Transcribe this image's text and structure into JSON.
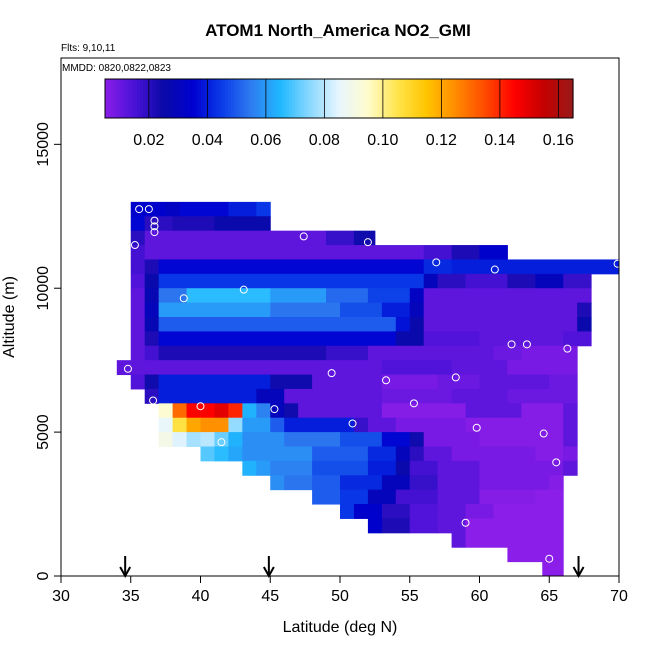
{
  "chart_data": {
    "type": "heatmap",
    "title": "ATOM1 North_America NO2_GMI",
    "subtitle_line1": "Flts: 9,10,11",
    "subtitle_line2": "MMDD: 0820,0822,0823",
    "xlabel": "Latitude (deg N)",
    "ylabel": "Altitude (m)",
    "xlim": [
      30,
      70
    ],
    "ylim": [
      0,
      18000
    ],
    "xticks": [
      30,
      35,
      40,
      45,
      50,
      55,
      60,
      65,
      70
    ],
    "xtick_labels": [
      "30",
      "35",
      "40",
      "45",
      "50",
      "55",
      "60",
      "65",
      "70"
    ],
    "yticks": [
      0,
      5000,
      10000,
      15000
    ],
    "ytick_labels": [
      "0",
      "5000",
      "10000",
      "15000"
    ],
    "grid": false,
    "colorbar": {
      "placement": "top",
      "min": 0.005,
      "max": 0.165,
      "ticks": [
        0.02,
        0.04,
        0.06,
        0.08,
        0.1,
        0.12,
        0.14,
        0.16
      ],
      "tick_labels": [
        "0.02",
        "0.04",
        "0.06",
        "0.08",
        "0.10",
        "0.12",
        "0.14",
        "0.16"
      ],
      "colors": [
        "#8b1ee8",
        "#4a12d8",
        "#0a0aa8",
        "#0000d0",
        "#0a3ce8",
        "#2f7cf0",
        "#20b8ff",
        "#8ad8ff",
        "#e8f6ff",
        "#fffccc",
        "#ffe44a",
        "#ffc400",
        "#ff8a00",
        "#ff4a00",
        "#ff0000",
        "#c40000",
        "#9a1a1a"
      ]
    },
    "cell_size": {
      "dlat": 1.0,
      "dalt": 500
    },
    "rows": [
      {
        "alt": 12750,
        "ranges": [
          [
            35.0,
            37.5,
            0.034
          ],
          [
            37.5,
            38.5,
            0.032
          ],
          [
            38.5,
            42.0,
            0.036
          ],
          [
            42.0,
            44.0,
            0.04
          ],
          [
            44.0,
            45.0,
            0.044
          ]
        ]
      },
      {
        "alt": 12250,
        "ranges": [
          [
            35.0,
            36.0,
            0.036
          ],
          [
            36.0,
            38.0,
            0.02
          ],
          [
            38.0,
            41.0,
            0.022
          ],
          [
            41.0,
            45.0,
            0.026
          ]
        ]
      },
      {
        "alt": 11750,
        "ranges": [
          [
            35.0,
            36.0,
            0.02
          ],
          [
            36.0,
            49.0,
            0.012
          ],
          [
            49.0,
            51.0,
            0.018
          ],
          [
            51.0,
            52.5,
            0.024
          ]
        ]
      },
      {
        "alt": 11250,
        "ranges": [
          [
            35.0,
            36.0,
            0.016
          ],
          [
            36.0,
            56.0,
            0.012
          ],
          [
            56.0,
            58.0,
            0.016
          ],
          [
            58.0,
            60.0,
            0.022
          ],
          [
            60.0,
            62.0,
            0.034
          ]
        ]
      },
      {
        "alt": 10750,
        "ranges": [
          [
            35.0,
            36.0,
            0.016
          ],
          [
            36.0,
            37.0,
            0.022
          ],
          [
            37.0,
            56.0,
            0.036
          ],
          [
            56.0,
            58.0,
            0.042
          ],
          [
            58.0,
            70.0,
            0.04
          ]
        ]
      },
      {
        "alt": 10250,
        "ranges": [
          [
            35.0,
            36.0,
            0.014
          ],
          [
            36.0,
            37.0,
            0.026
          ],
          [
            37.0,
            56.0,
            0.044
          ],
          [
            56.0,
            57.0,
            0.03
          ],
          [
            57.0,
            59.0,
            0.02
          ],
          [
            59.0,
            62.0,
            0.016
          ],
          [
            62.0,
            64.0,
            0.022
          ],
          [
            64.0,
            66.0,
            0.03
          ],
          [
            66.0,
            68.0,
            0.018
          ]
        ]
      },
      {
        "alt": 9750,
        "ranges": [
          [
            35.0,
            36.0,
            0.012
          ],
          [
            36.0,
            37.0,
            0.028
          ],
          [
            37.0,
            39.0,
            0.054
          ],
          [
            39.0,
            45.0,
            0.066
          ],
          [
            45.0,
            49.0,
            0.06
          ],
          [
            49.0,
            52.0,
            0.052
          ],
          [
            52.0,
            55.0,
            0.046
          ],
          [
            55.0,
            56.0,
            0.032
          ],
          [
            56.0,
            68.0,
            0.012
          ]
        ]
      },
      {
        "alt": 9250,
        "ranges": [
          [
            35.0,
            36.0,
            0.012
          ],
          [
            36.0,
            37.0,
            0.03
          ],
          [
            37.0,
            45.0,
            0.06
          ],
          [
            45.0,
            50.0,
            0.054
          ],
          [
            50.0,
            53.0,
            0.048
          ],
          [
            53.0,
            55.0,
            0.04
          ],
          [
            55.0,
            56.0,
            0.03
          ],
          [
            56.0,
            67.0,
            0.012
          ],
          [
            67.0,
            68.0,
            0.022
          ]
        ]
      },
      {
        "alt": 8750,
        "ranges": [
          [
            35.0,
            36.0,
            0.012
          ],
          [
            36.0,
            37.0,
            0.028
          ],
          [
            37.0,
            54.0,
            0.05
          ],
          [
            54.0,
            55.0,
            0.038
          ],
          [
            55.0,
            56.0,
            0.026
          ],
          [
            56.0,
            67.0,
            0.012
          ],
          [
            67.0,
            68.0,
            0.026
          ]
        ]
      },
      {
        "alt": 8250,
        "ranges": [
          [
            35.0,
            36.0,
            0.012
          ],
          [
            36.0,
            37.0,
            0.022
          ],
          [
            37.0,
            54.0,
            0.036
          ],
          [
            54.0,
            56.0,
            0.026
          ],
          [
            56.0,
            60.0,
            0.014
          ],
          [
            60.0,
            66.0,
            0.012
          ],
          [
            66.0,
            68.0,
            0.014
          ]
        ]
      },
      {
        "alt": 7750,
        "ranges": [
          [
            35.0,
            36.0,
            0.012
          ],
          [
            36.0,
            37.0,
            0.016
          ],
          [
            37.0,
            49.0,
            0.022
          ],
          [
            49.0,
            52.0,
            0.018
          ],
          [
            52.0,
            61.0,
            0.012
          ],
          [
            61.0,
            63.0,
            0.01
          ],
          [
            63.0,
            67.0,
            0.008
          ]
        ]
      },
      {
        "alt": 7250,
        "ranges": [
          [
            34.0,
            44.0,
            0.012
          ],
          [
            44.0,
            53.0,
            0.012
          ],
          [
            53.0,
            58.0,
            0.014
          ],
          [
            58.0,
            62.0,
            0.012
          ],
          [
            62.0,
            67.0,
            0.008
          ]
        ]
      },
      {
        "alt": 6750,
        "ranges": [
          [
            35.0,
            36.0,
            0.014
          ],
          [
            36.0,
            37.0,
            0.024
          ],
          [
            37.0,
            45.0,
            0.04
          ],
          [
            45.0,
            48.0,
            0.024
          ],
          [
            48.0,
            53.0,
            0.012
          ],
          [
            53.0,
            57.0,
            0.008
          ],
          [
            57.0,
            60.0,
            0.01
          ],
          [
            60.0,
            65.0,
            0.012
          ],
          [
            65.0,
            67.0,
            0.01
          ]
        ]
      },
      {
        "alt": 6250,
        "ranges": [
          [
            36.0,
            37.0,
            0.02
          ],
          [
            37.0,
            44.0,
            0.04
          ],
          [
            44.0,
            46.0,
            0.03
          ],
          [
            46.0,
            53.0,
            0.012
          ],
          [
            53.0,
            58.0,
            0.01
          ],
          [
            58.0,
            62.0,
            0.012
          ],
          [
            62.0,
            67.0,
            0.01
          ]
        ]
      },
      {
        "alt": 5750,
        "ranges": [
          [
            37.0,
            38.0,
            0.094
          ],
          [
            38.0,
            39.0,
            0.13
          ],
          [
            39.0,
            41.0,
            0.145
          ],
          [
            41.0,
            42.0,
            0.15
          ],
          [
            42.0,
            43.0,
            0.14
          ],
          [
            43.0,
            44.0,
            0.064
          ],
          [
            44.0,
            45.0,
            0.056
          ],
          [
            45.0,
            46.0,
            0.03
          ],
          [
            46.0,
            47.0,
            0.024
          ],
          [
            47.0,
            53.0,
            0.012
          ],
          [
            53.0,
            59.0,
            0.006
          ],
          [
            59.0,
            63.0,
            0.012
          ],
          [
            63.0,
            66.0,
            0.006
          ],
          [
            66.0,
            67.0,
            0.012
          ]
        ]
      },
      {
        "alt": 5250,
        "ranges": [
          [
            37.0,
            38.0,
            0.086
          ],
          [
            38.0,
            39.0,
            0.106
          ],
          [
            39.0,
            40.0,
            0.12
          ],
          [
            40.0,
            42.0,
            0.124
          ],
          [
            42.0,
            43.0,
            0.076
          ],
          [
            43.0,
            45.0,
            0.06
          ],
          [
            45.0,
            46.0,
            0.05
          ],
          [
            46.0,
            51.0,
            0.04
          ],
          [
            51.0,
            52.0,
            0.018
          ],
          [
            52.0,
            54.0,
            0.012
          ],
          [
            54.0,
            59.0,
            0.008
          ],
          [
            59.0,
            66.0,
            0.006
          ],
          [
            66.0,
            67.0,
            0.012
          ]
        ]
      },
      {
        "alt": 4750,
        "ranges": [
          [
            37.0,
            38.0,
            0.09
          ],
          [
            38.0,
            39.0,
            0.084
          ],
          [
            39.0,
            40.0,
            0.078
          ],
          [
            40.0,
            41.0,
            0.08
          ],
          [
            41.0,
            42.0,
            0.072
          ],
          [
            42.0,
            43.0,
            0.064
          ],
          [
            43.0,
            46.0,
            0.058
          ],
          [
            46.0,
            50.0,
            0.054
          ],
          [
            50.0,
            53.0,
            0.048
          ],
          [
            53.0,
            55.0,
            0.036
          ],
          [
            55.0,
            56.0,
            0.024
          ],
          [
            56.0,
            60.0,
            0.008
          ],
          [
            60.0,
            66.0,
            0.006
          ],
          [
            66.0,
            67.0,
            0.012
          ]
        ]
      },
      {
        "alt": 4250,
        "ranges": [
          [
            40.0,
            41.0,
            0.07
          ],
          [
            41.0,
            42.0,
            0.066
          ],
          [
            42.0,
            43.0,
            0.062
          ],
          [
            43.0,
            48.0,
            0.058
          ],
          [
            48.0,
            52.0,
            0.05
          ],
          [
            52.0,
            54.0,
            0.042
          ],
          [
            54.0,
            55.0,
            0.03
          ],
          [
            55.0,
            56.0,
            0.02
          ],
          [
            56.0,
            58.0,
            0.012
          ],
          [
            58.0,
            64.0,
            0.008
          ],
          [
            64.0,
            66.0,
            0.006
          ],
          [
            66.0,
            67.0,
            0.008
          ]
        ]
      },
      {
        "alt": 3750,
        "ranges": [
          [
            43.0,
            44.0,
            0.064
          ],
          [
            44.0,
            45.0,
            0.06
          ],
          [
            45.0,
            48.0,
            0.056
          ],
          [
            48.0,
            52.0,
            0.048
          ],
          [
            52.0,
            54.0,
            0.04
          ],
          [
            54.0,
            55.0,
            0.026
          ],
          [
            55.0,
            57.0,
            0.016
          ],
          [
            57.0,
            60.0,
            0.012
          ],
          [
            60.0,
            66.0,
            0.008
          ],
          [
            66.0,
            67.0,
            0.012
          ]
        ]
      },
      {
        "alt": 3250,
        "ranges": [
          [
            45.0,
            46.0,
            0.058
          ],
          [
            46.0,
            48.0,
            0.054
          ],
          [
            48.0,
            50.0,
            0.05
          ],
          [
            50.0,
            53.0,
            0.042
          ],
          [
            53.0,
            55.0,
            0.03
          ],
          [
            55.0,
            57.0,
            0.018
          ],
          [
            57.0,
            60.0,
            0.012
          ],
          [
            60.0,
            65.0,
            0.008
          ],
          [
            65.0,
            66.0,
            0.006
          ]
        ]
      },
      {
        "alt": 2750,
        "ranges": [
          [
            48.0,
            50.0,
            0.05
          ],
          [
            50.0,
            52.0,
            0.044
          ],
          [
            52.0,
            54.0,
            0.03
          ],
          [
            54.0,
            57.0,
            0.016
          ],
          [
            57.0,
            60.0,
            0.012
          ],
          [
            60.0,
            64.0,
            0.006
          ],
          [
            64.0,
            66.0,
            0.004
          ]
        ]
      },
      {
        "alt": 2250,
        "ranges": [
          [
            50.0,
            51.0,
            0.044
          ],
          [
            51.0,
            53.0,
            0.034
          ],
          [
            53.0,
            55.0,
            0.02
          ],
          [
            55.0,
            57.0,
            0.014
          ],
          [
            57.0,
            59.0,
            0.012
          ],
          [
            59.0,
            61.0,
            0.008
          ],
          [
            61.0,
            66.0,
            0.004
          ]
        ]
      },
      {
        "alt": 1750,
        "ranges": [
          [
            52.0,
            53.0,
            0.034
          ],
          [
            53.0,
            55.0,
            0.022
          ],
          [
            55.0,
            57.0,
            0.014
          ],
          [
            57.0,
            59.0,
            0.012
          ],
          [
            59.0,
            66.0,
            0.004
          ]
        ]
      },
      {
        "alt": 1250,
        "ranges": [
          [
            58.0,
            59.0,
            0.012
          ],
          [
            59.0,
            66.0,
            0.004
          ]
        ]
      },
      {
        "alt": 750,
        "ranges": [
          [
            62.0,
            66.0,
            0.004
          ]
        ]
      },
      {
        "alt": 250,
        "ranges": [
          [
            64.5,
            66.0,
            0.004
          ]
        ]
      }
    ],
    "sample_points": [
      {
        "lat": 35.6,
        "alt": 12750
      },
      {
        "lat": 36.3,
        "alt": 12750
      },
      {
        "lat": 36.7,
        "alt": 12350
      },
      {
        "lat": 36.7,
        "alt": 12150
      },
      {
        "lat": 36.7,
        "alt": 11950
      },
      {
        "lat": 35.3,
        "alt": 11500
      },
      {
        "lat": 47.4,
        "alt": 11800
      },
      {
        "lat": 52.0,
        "alt": 11600
      },
      {
        "lat": 56.9,
        "alt": 10900
      },
      {
        "lat": 61.1,
        "alt": 10650
      },
      {
        "lat": 69.9,
        "alt": 10850
      },
      {
        "lat": 43.1,
        "alt": 9950
      },
      {
        "lat": 38.8,
        "alt": 9650
      },
      {
        "lat": 62.3,
        "alt": 8050
      },
      {
        "lat": 63.4,
        "alt": 8050
      },
      {
        "lat": 66.3,
        "alt": 7900
      },
      {
        "lat": 34.8,
        "alt": 7200
      },
      {
        "lat": 49.4,
        "alt": 7050
      },
      {
        "lat": 53.3,
        "alt": 6800
      },
      {
        "lat": 58.3,
        "alt": 6900
      },
      {
        "lat": 36.6,
        "alt": 6100
      },
      {
        "lat": 40.0,
        "alt": 5900
      },
      {
        "lat": 45.3,
        "alt": 5800
      },
      {
        "lat": 55.3,
        "alt": 6000
      },
      {
        "lat": 50.9,
        "alt": 5300
      },
      {
        "lat": 59.8,
        "alt": 5150
      },
      {
        "lat": 64.6,
        "alt": 4950
      },
      {
        "lat": 41.5,
        "alt": 4650
      },
      {
        "lat": 65.5,
        "alt": 3950
      },
      {
        "lat": 59.0,
        "alt": 1850
      },
      {
        "lat": 65.0,
        "alt": 600
      }
    ],
    "arrows_lat": [
      34.6,
      44.9,
      67.1
    ]
  }
}
